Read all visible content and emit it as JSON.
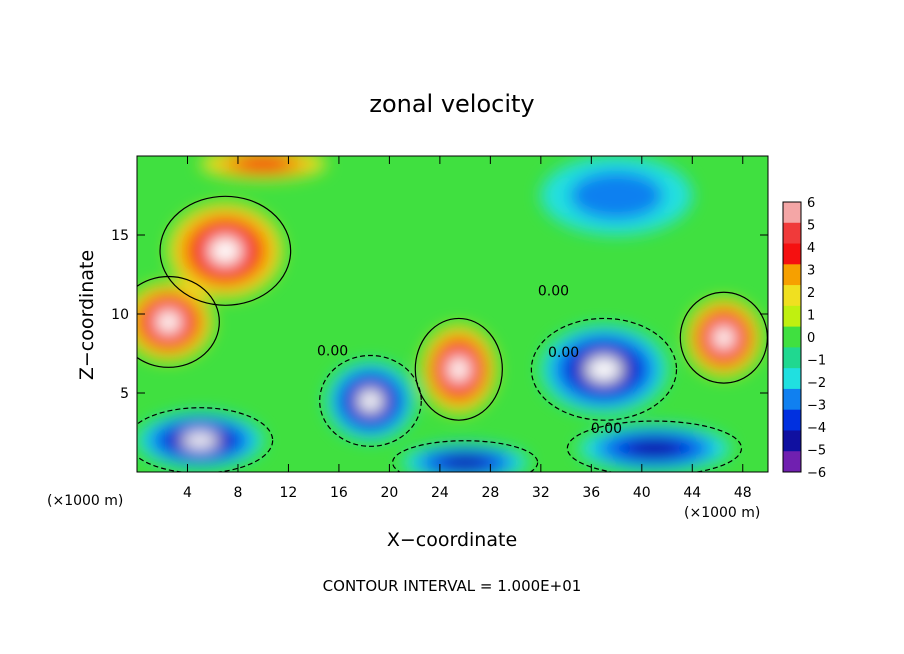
{
  "chart_data": {
    "type": "heatmap",
    "title": "zonal velocity",
    "xlabel": "X−coordinate",
    "ylabel": "Z−coordinate",
    "x_unit": "(×1000 m)",
    "y_unit": "(×1000 m)",
    "x_ticks": [
      4,
      8,
      12,
      16,
      20,
      24,
      28,
      32,
      36,
      40,
      44,
      48
    ],
    "y_ticks": [
      5,
      10,
      15
    ],
    "xlim": [
      0,
      50
    ],
    "ylim": [
      0,
      20
    ],
    "colorbar": {
      "ticks": [
        6,
        5,
        4,
        3,
        2,
        1,
        0,
        -1,
        -2,
        -3,
        -4,
        -5,
        -6
      ],
      "tick_labels": [
        "6",
        "5",
        "4",
        "3",
        "2",
        "1",
        "0",
        "−1",
        "−2",
        "−3",
        "−4",
        "−5",
        "−6"
      ],
      "colors": [
        "#f4a6a6",
        "#f03a3a",
        "#f51010",
        "#f6a000",
        "#f0e020",
        "#c0f010",
        "#40e040",
        "#20d890",
        "#20e0e0",
        "#1080f0",
        "#0030e0",
        "#1010a0",
        "#7020b0"
      ]
    },
    "contour_interval": "CONTOUR INTERVAL = 1.000E+01",
    "contour_labels": [
      {
        "text": "0.00",
        "x": 33,
        "z": 11.5
      },
      {
        "text": "0.00",
        "x": 15.5,
        "z": 7.7
      },
      {
        "text": "0.00",
        "x": 33.8,
        "z": 7.6
      },
      {
        "text": "0.00",
        "x": 37.2,
        "z": 2.8
      }
    ],
    "features": [
      {
        "sign": "positive",
        "x": 7,
        "z": 14,
        "strength": 6,
        "rx": 4.5,
        "rz": 3
      },
      {
        "sign": "positive",
        "x": 2.5,
        "z": 9.5,
        "strength": 6,
        "rx": 3.5,
        "rz": 2.5
      },
      {
        "sign": "positive",
        "x": 25.5,
        "z": 6.5,
        "strength": 6,
        "rx": 3,
        "rz": 2.8
      },
      {
        "sign": "positive",
        "x": 46.5,
        "z": 8.5,
        "strength": 6,
        "rx": 3,
        "rz": 2.5
      },
      {
        "sign": "negative",
        "x": 37,
        "z": 6.5,
        "strength": 6,
        "rx": 5,
        "rz": 2.8
      },
      {
        "sign": "negative",
        "x": 18.5,
        "z": 4.5,
        "strength": 6,
        "rx": 3.5,
        "rz": 2.5
      },
      {
        "sign": "negative",
        "x": 5,
        "z": 2,
        "strength": 6,
        "rx": 5,
        "rz": 1.8
      },
      {
        "sign": "negative",
        "x": 26,
        "z": 0.6,
        "strength": 5,
        "rx": 5,
        "rz": 1.2
      },
      {
        "sign": "negative",
        "x": 41,
        "z": 1.5,
        "strength": 5,
        "rx": 6,
        "rz": 1.5
      },
      {
        "sign": "negative",
        "x": 38,
        "z": 17.5,
        "strength": 2,
        "rx": 6,
        "rz": 2.5
      },
      {
        "sign": "positive",
        "x": 10,
        "z": 19.5,
        "strength": 3,
        "rx": 5,
        "rz": 1
      }
    ]
  }
}
